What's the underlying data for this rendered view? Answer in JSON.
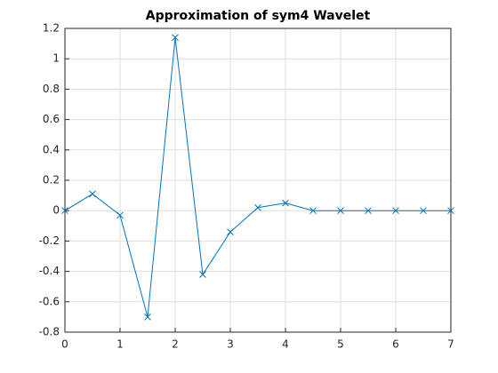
{
  "chart_data": {
    "type": "line",
    "title": "Approximation of sym4 Wavelet",
    "x": [
      0,
      0.5,
      1,
      1.5,
      2,
      2.5,
      3,
      3.5,
      4,
      4.5,
      5,
      5.5,
      6,
      6.5,
      7
    ],
    "series": [
      {
        "color": "#0072bd",
        "marker": "x",
        "values": [
          0,
          0.11,
          -0.03,
          -0.7,
          1.14,
          -0.42,
          -0.14,
          0.02,
          0.05,
          0,
          0,
          0,
          0,
          0,
          0
        ]
      }
    ],
    "xlim": [
      0,
      7
    ],
    "xticks": [
      0,
      1,
      2,
      3,
      4,
      5,
      6,
      7
    ],
    "ylim": [
      -0.8,
      1.2
    ],
    "yticks": [
      -0.8,
      -0.6,
      -0.4,
      -0.2,
      0,
      0.2,
      0.4,
      0.6,
      0.8,
      1,
      1.2
    ],
    "grid": true
  }
}
